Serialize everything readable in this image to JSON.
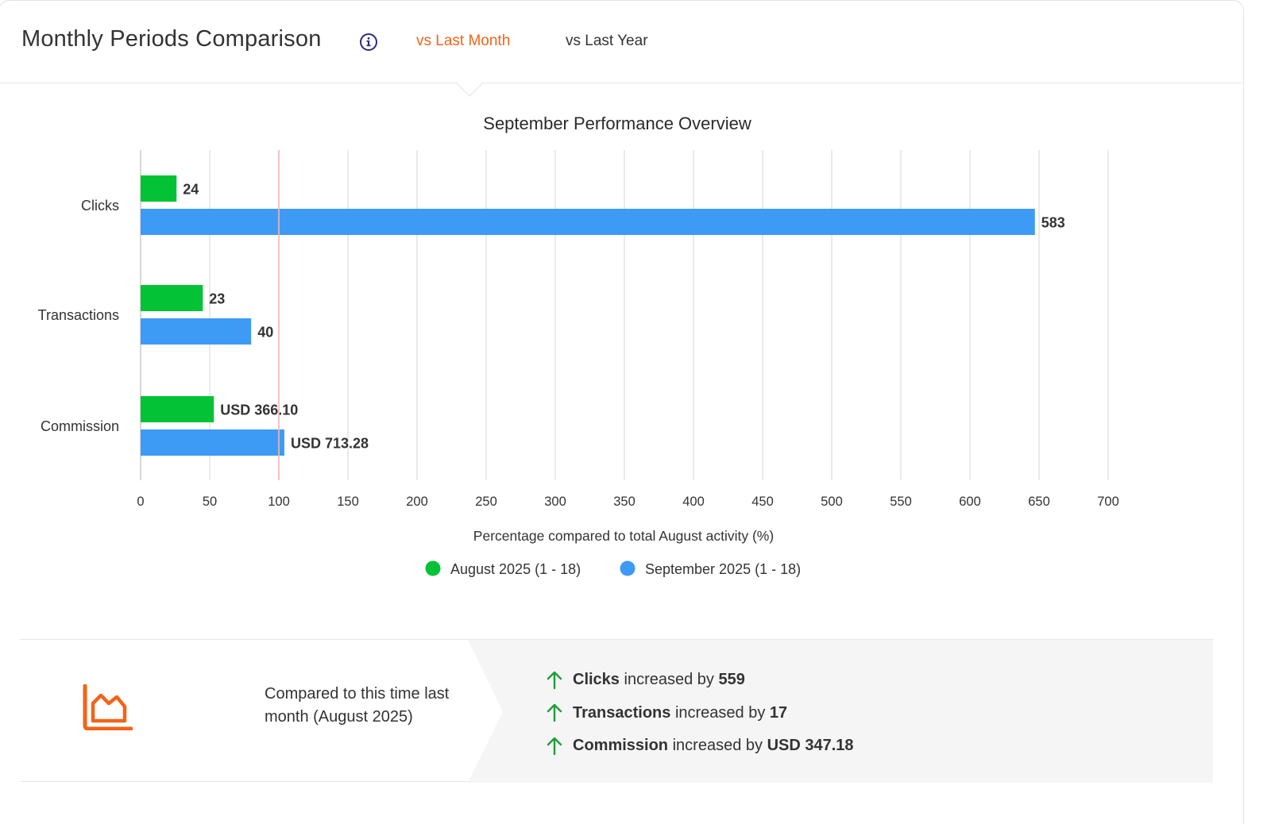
{
  "header": {
    "title": "Monthly Periods Comparison",
    "tabs": [
      {
        "label": "vs Last Month",
        "active": true
      },
      {
        "label": "vs Last Year",
        "active": false
      }
    ]
  },
  "colors": {
    "accent": "#f26418",
    "august": "#04c235",
    "september": "#3d9af5",
    "reference_line": "#f3b9b2",
    "gain_arrow": "#1f9d3a"
  },
  "icons": {
    "info": "info-circle-icon",
    "trend": "area-chart-icon",
    "increase": "arrow-up-icon"
  },
  "chart_data": {
    "type": "bar",
    "orientation": "horizontal",
    "title": "September Performance Overview",
    "xlabel": "Percentage compared to total August activity (%)",
    "ylabel": "",
    "categories": [
      "Clicks",
      "Transactions",
      "Commission"
    ],
    "xlim": [
      0,
      700
    ],
    "xticks": [
      0,
      50,
      100,
      150,
      200,
      250,
      300,
      350,
      400,
      450,
      500,
      550,
      600,
      650,
      700
    ],
    "reference_line": 100,
    "grid": true,
    "legend_position": "bottom",
    "series": [
      {
        "name": "August 2025 (1 - 18)",
        "values": [
          26,
          45,
          53
        ],
        "labels": [
          "24",
          "23",
          "USD 366.10"
        ]
      },
      {
        "name": "September 2025 (1 - 18)",
        "values": [
          647,
          80,
          104
        ],
        "labels": [
          "583",
          "40",
          "USD 713.28"
        ]
      }
    ]
  },
  "summary": {
    "compare_text": "Compared to this time last month (August 2025)",
    "stats": [
      {
        "metric": "Clicks",
        "verb": "increased by",
        "amount": "559"
      },
      {
        "metric": "Transactions",
        "verb": "increased by",
        "amount": "17"
      },
      {
        "metric": "Commission",
        "verb": "increased by",
        "amount": "USD 347.18"
      }
    ]
  }
}
